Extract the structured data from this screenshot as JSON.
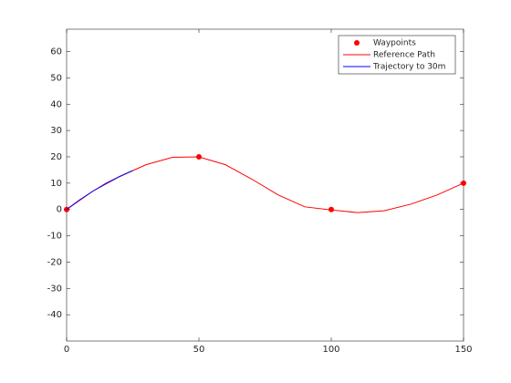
{
  "chart_data": {
    "type": "line",
    "xlim": [
      0,
      150
    ],
    "ylim": [
      -50,
      68.5
    ],
    "xticks": [
      0,
      50,
      100,
      150
    ],
    "yticks": [
      -40,
      -30,
      -20,
      -10,
      0,
      10,
      20,
      30,
      40,
      50,
      60
    ],
    "legend": "top-right",
    "series": [
      {
        "name": "Waypoints",
        "color": "#ff0000",
        "style": "markers",
        "x": [
          0,
          50,
          100,
          150
        ],
        "values": [
          0,
          20,
          0,
          10
        ]
      },
      {
        "name": "Reference Path",
        "color": "#ff0000",
        "style": "line",
        "x": [
          0,
          10,
          20,
          30,
          40,
          50,
          60,
          70,
          80,
          90,
          100,
          110,
          120,
          130,
          140,
          150
        ],
        "values": [
          0,
          7,
          12.5,
          17,
          19.8,
          20,
          17,
          11.5,
          5.5,
          1,
          -0.2,
          -1.2,
          -0.5,
          2,
          5.5,
          10
        ]
      },
      {
        "name": "Trajectory to 30m",
        "color": "#0000ff",
        "style": "line",
        "x": [
          0,
          5,
          10,
          15,
          20,
          25
        ],
        "values": [
          0,
          3.7,
          7,
          10,
          12.5,
          14.8
        ]
      }
    ]
  }
}
